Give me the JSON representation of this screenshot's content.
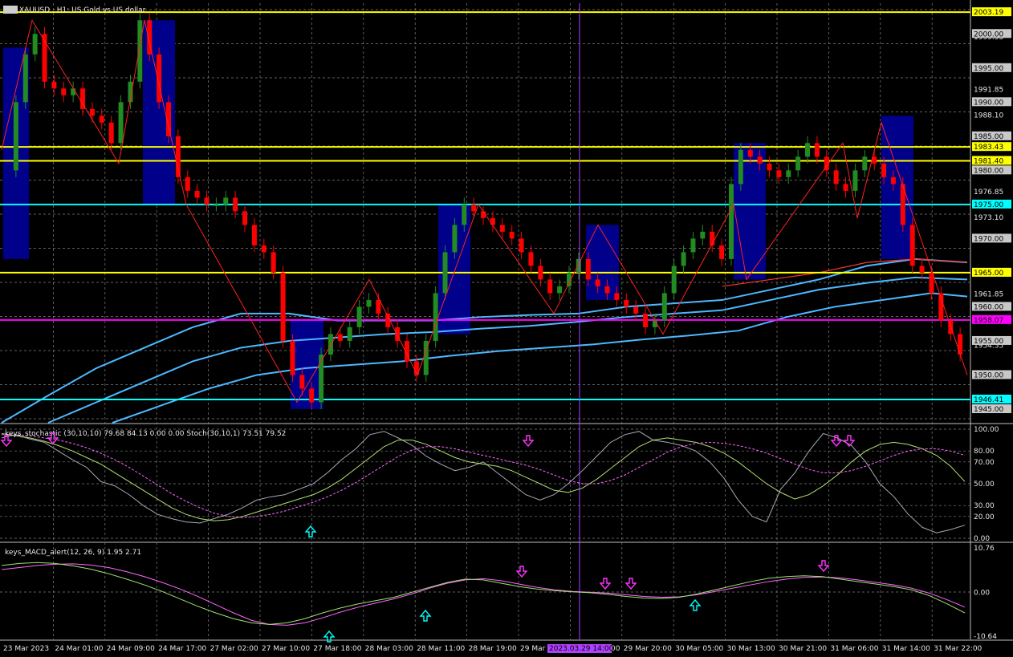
{
  "main": {
    "symbol_title": "XAUUSD , H1: US Gold vs US dollar",
    "price_range": [
      1943,
      2004.5
    ],
    "price_ticks": [
      "1999.55",
      "1995.00",
      "1991.85",
      "1990.00",
      "1988.10",
      "1985.00",
      "1980.00",
      "1976.85",
      "1975.00",
      "1973.10",
      "1970.00",
      "1965.00",
      "1961.85",
      "1960.00",
      "1955.00",
      "1954.35",
      "1950.00",
      "1945.00"
    ],
    "price_tick_values": [
      1999.55,
      1995.0,
      1991.85,
      1990.0,
      1988.1,
      1985.0,
      1980.0,
      1976.85,
      1975.0,
      1973.1,
      1970.0,
      1965.0,
      1961.85,
      1960.0,
      1955.0,
      1954.35,
      1950.0,
      1945.0
    ],
    "hlines": [
      {
        "price": 2003.19,
        "label": "2003.19",
        "color": "#ffff00"
      },
      {
        "price": 1983.43,
        "label": "1983.43",
        "color": "#ffff00"
      },
      {
        "price": 1981.4,
        "label": "1981.40",
        "color": "#ffff00"
      },
      {
        "price": 1975.0,
        "label": "1975.00",
        "color": "#00ffff"
      },
      {
        "price": 1965.0,
        "label": "1965.00",
        "color": "#ffff00"
      },
      {
        "price": 1958.07,
        "label": "1958.07",
        "color": "#ff00ff"
      },
      {
        "price": 1946.41,
        "label": "1946.41",
        "color": "#00ffff"
      }
    ],
    "boxed_labels": [
      "2000.00",
      "1995.00",
      "1990.00",
      "1985.00",
      "1980.00",
      "1970.00",
      "1965.00",
      "1960.00",
      "1955.00",
      "1950.00",
      "1945.00"
    ],
    "time_labels": [
      "23 Mar 2023",
      "24 Mar 01:00",
      "24 Mar 09:00",
      "24 Mar 17:00",
      "27 Mar 02:00",
      "27 Mar 10:00",
      "27 Mar 18:00",
      "28 Mar 03:00",
      "28 Mar 11:00",
      "28 Mar 19:00",
      "29 Mar 04:00",
      "29 Mar 12:00",
      "29 Mar 20:00",
      "30 Mar 05:00",
      "30 Mar 13:00",
      "30 Mar 21:00",
      "31 Mar 06:00",
      "31 Mar 14:00",
      "31 Mar 22:00"
    ],
    "cursor_label": "2023.03.29 14:00"
  },
  "chart_data": [
    {
      "type": "candlestick",
      "title": "XAUUSD , H1: US Gold vs US dollar",
      "close_path": [
        1980,
        1990,
        1997,
        2000,
        1993,
        1992,
        1991,
        1992,
        1989,
        1988,
        1987,
        1984,
        1990,
        1993,
        2002,
        1997,
        1990,
        1985,
        1979,
        1977,
        1976,
        1975,
        1975,
        1976,
        1974,
        1972,
        1969,
        1968,
        1965,
        1955,
        1950,
        1948,
        1946,
        1953,
        1956,
        1955,
        1957,
        1960,
        1961,
        1959,
        1957,
        1955,
        1952,
        1950,
        1955,
        1962,
        1968,
        1972,
        1975,
        1974,
        1973,
        1972,
        1971,
        1970,
        1968,
        1966,
        1964,
        1962,
        1963,
        1965,
        1967,
        1964,
        1963,
        1962,
        1961,
        1960,
        1959,
        1957,
        1958,
        1962,
        1966,
        1968,
        1970,
        1971,
        1969,
        1967,
        1978,
        1983,
        1982,
        1981,
        1980,
        1979,
        1980,
        1982,
        1984,
        1982,
        1980,
        1978,
        1977,
        1980,
        1982,
        1981,
        1979,
        1978,
        1972,
        1966,
        1965,
        1962,
        1958,
        1956,
        1953
      ]
    },
    {
      "type": "line",
      "title": "keys_stochastic (30,10,10) 79.68 84.13 0.00 0.00 Stoch(30,10,1) 73.51 79.52",
      "ylim": [
        0,
        100
      ],
      "tick_labels": [
        "100.00",
        "80.00",
        "70.00",
        "50.00",
        "30.00",
        "20.00",
        "0.00"
      ],
      "tick_values": [
        100,
        80,
        70,
        50,
        30,
        20,
        0
      ],
      "series": [
        {
          "name": "",
          "color": "#a8a8b8",
          "values": [
            92,
            95,
            91,
            88,
            80,
            72,
            65,
            52,
            48,
            40,
            30,
            22,
            18,
            15,
            14,
            18,
            22,
            28,
            35,
            38,
            40,
            45,
            50,
            60,
            72,
            82,
            95,
            98,
            92,
            85,
            75,
            68,
            62,
            65,
            70,
            60,
            50,
            40,
            35,
            40,
            50,
            62,
            75,
            88,
            95,
            98,
            90,
            88,
            85,
            80,
            70,
            55,
            35,
            20,
            15,
            45,
            60,
            80,
            96,
            92,
            85,
            70,
            50,
            38,
            22,
            10,
            5,
            8,
            12
          ]
        },
        {
          "name": "",
          "color": "#b0e070",
          "values": [
            96,
            94,
            92,
            89,
            85,
            80,
            74,
            68,
            60,
            52,
            44,
            36,
            28,
            22,
            18,
            16,
            17,
            20,
            24,
            28,
            32,
            36,
            40,
            46,
            54,
            64,
            74,
            84,
            90,
            90,
            86,
            80,
            74,
            70,
            68,
            66,
            62,
            56,
            50,
            44,
            42,
            46,
            54,
            64,
            74,
            84,
            90,
            92,
            90,
            88,
            84,
            78,
            70,
            60,
            50,
            42,
            36,
            40,
            48,
            58,
            70,
            80,
            86,
            88,
            86,
            82,
            76,
            66,
            52
          ]
        },
        {
          "name": "",
          "color": "#ff66ff",
          "values": [
            95,
            95,
            94,
            92,
            90,
            87,
            83,
            78,
            72,
            65,
            57,
            49,
            41,
            34,
            28,
            23,
            20,
            19,
            20,
            22,
            25,
            29,
            33,
            38,
            44,
            51,
            59,
            67,
            75,
            81,
            84,
            84,
            82,
            79,
            76,
            73,
            70,
            67,
            63,
            58,
            53,
            50,
            50,
            53,
            58,
            65,
            72,
            79,
            84,
            87,
            88,
            87,
            85,
            82,
            78,
            73,
            68,
            63,
            60,
            60,
            62,
            66,
            71,
            76,
            80,
            82,
            82,
            80,
            76
          ]
        }
      ]
    },
    {
      "type": "line",
      "title": "keys_MACD_alert(12, 26, 9) 1.95 2.71",
      "ylim": [
        -10.64,
        10.76
      ],
      "tick_labels": [
        "10.76",
        "0.00",
        "-10.64"
      ],
      "tick_values": [
        10.76,
        0,
        -10.64
      ],
      "series": [
        {
          "name": "",
          "color": "#ff66ff",
          "values": [
            5.5,
            6.0,
            6.5,
            6.8,
            6.9,
            6.6,
            6.0,
            5.0,
            3.8,
            2.4,
            0.8,
            -1.0,
            -3.0,
            -5.0,
            -6.8,
            -7.8,
            -8.0,
            -7.4,
            -6.2,
            -4.8,
            -3.6,
            -2.6,
            -1.6,
            -0.4,
            1.0,
            2.2,
            3.0,
            3.3,
            2.8,
            2.0,
            1.2,
            0.6,
            0.2,
            0.0,
            -0.2,
            -0.6,
            -1.0,
            -1.2,
            -1.1,
            -0.6,
            0.2,
            1.0,
            1.8,
            2.6,
            3.2,
            3.6,
            3.7,
            3.5,
            3.0,
            2.4,
            1.8,
            1.0,
            -0.2,
            -1.8,
            -3.6
          ]
        },
        {
          "name": "",
          "color": "#a0e070",
          "values": [
            6.5,
            7.0,
            7.2,
            7.0,
            6.4,
            5.6,
            4.5,
            3.2,
            1.8,
            0.2,
            -1.6,
            -3.4,
            -5.0,
            -6.4,
            -7.4,
            -7.8,
            -7.4,
            -6.4,
            -5.0,
            -3.8,
            -2.8,
            -2.0,
            -1.2,
            0.0,
            1.2,
            2.4,
            3.2,
            3.0,
            2.2,
            1.4,
            0.8,
            0.4,
            0.1,
            -0.1,
            -0.5,
            -1.0,
            -1.4,
            -1.5,
            -1.2,
            -0.4,
            0.6,
            1.6,
            2.6,
            3.4,
            3.8,
            4.0,
            3.8,
            3.2,
            2.6,
            2.0,
            1.4,
            0.6,
            -0.8,
            -2.8,
            -5.0
          ]
        }
      ]
    }
  ],
  "colors": {
    "bull": "#228b22",
    "bear": "#ff0000",
    "grid": "#808080",
    "zigzag": "#ff2020",
    "ma": "#4db8ff",
    "ma_slow": "#ff3333",
    "box": "#00008b",
    "cursor": "#b040ff",
    "arrow_up": "#00ffff",
    "arrow_down": "#ff33ff"
  }
}
